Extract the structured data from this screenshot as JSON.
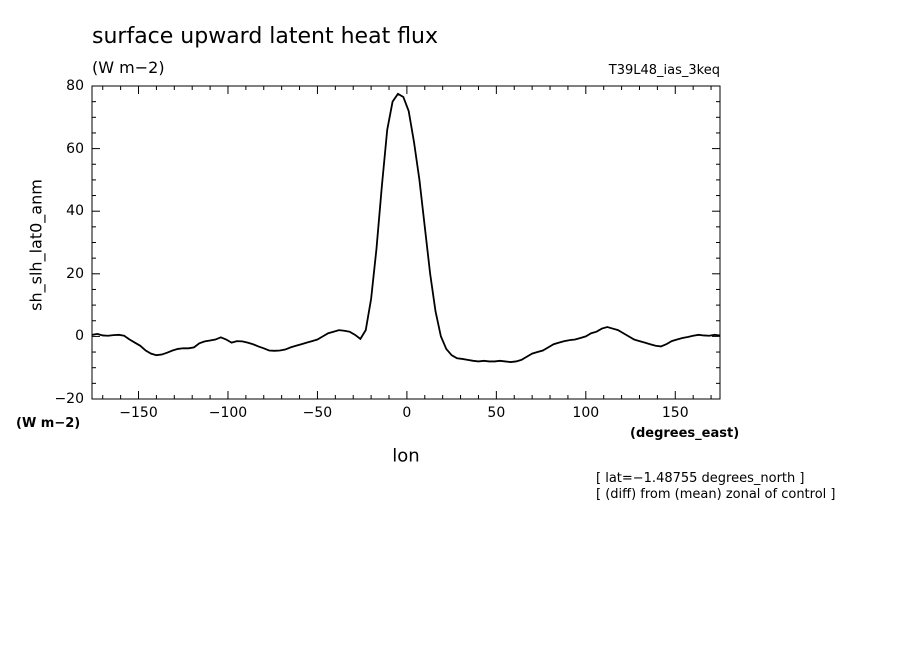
{
  "chart_data": {
    "type": "line",
    "title": "surface upward latent heat flux",
    "subtitle": "(W m−2)",
    "experiment": "T39L48_ias_3keq",
    "ylabel": "sh_slh_lat0_anm",
    "yunits": "(W m−2)",
    "xlabel": "lon",
    "xunits": "(degrees_east)",
    "xlim": [
      -176,
      175
    ],
    "ylim": [
      -20,
      80
    ],
    "xticks": [
      -150,
      -100,
      -50,
      0,
      50,
      100,
      150
    ],
    "xtick_labels": [
      "−150",
      "−100",
      "−50",
      "0",
      "50",
      "100",
      "150"
    ],
    "yticks": [
      -20,
      0,
      20,
      40,
      60,
      80
    ],
    "ytick_labels": [
      "−20",
      "0",
      "20",
      "40",
      "60",
      "80"
    ],
    "grid": false,
    "annotations": [
      "[ lat=−1.48755 degrees_north ]",
      "[ (diff) from (mean) zonal of control ]"
    ],
    "series": [
      {
        "x": [
          -176,
          -173,
          -170,
          -167,
          -164,
          -161,
          -158,
          -155,
          -152,
          -149,
          -146,
          -143,
          -140,
          -137,
          -134,
          -131,
          -128,
          -125,
          -122,
          -119,
          -116,
          -113,
          -110,
          -107,
          -104,
          -101,
          -98,
          -95,
          -92,
          -89,
          -86,
          -83,
          -80,
          -77,
          -74,
          -71,
          -68,
          -65,
          -62,
          -59,
          -56,
          -53,
          -50,
          -47,
          -44,
          -41,
          -38,
          -35,
          -32,
          -29,
          -26,
          -23,
          -20,
          -17,
          -14,
          -11,
          -8,
          -5,
          -2,
          1,
          4,
          7,
          10,
          13,
          16,
          19,
          22,
          25,
          28,
          31,
          34,
          37,
          40,
          43,
          46,
          49,
          52,
          55,
          58,
          61,
          64,
          67,
          70,
          73,
          76,
          79,
          82,
          85,
          88,
          91,
          94,
          97,
          100,
          103,
          106,
          109,
          112,
          115,
          118,
          121,
          124,
          127,
          130,
          133,
          136,
          139,
          142,
          145,
          148,
          151,
          154,
          157,
          160,
          163,
          166,
          169,
          172,
          175
        ],
        "y": [
          0.5,
          0.8,
          0.3,
          0.2,
          0.4,
          0.5,
          0.2,
          -1.0,
          -2.0,
          -3.0,
          -4.5,
          -5.5,
          -6.0,
          -5.8,
          -5.2,
          -4.5,
          -4.0,
          -3.8,
          -3.8,
          -3.5,
          -2.2,
          -1.6,
          -1.3,
          -1.0,
          -0.3,
          -1.0,
          -2.0,
          -1.5,
          -1.6,
          -2.0,
          -2.5,
          -3.2,
          -3.8,
          -4.5,
          -4.6,
          -4.5,
          -4.2,
          -3.5,
          -3.0,
          -2.5,
          -2.0,
          -1.5,
          -1.0,
          0.0,
          1.0,
          1.5,
          2.0,
          1.8,
          1.5,
          0.5,
          -0.8,
          2.0,
          12,
          28,
          48,
          66,
          75,
          77.5,
          76.5,
          72,
          62,
          50,
          35,
          20,
          8,
          0,
          -4,
          -6,
          -7,
          -7.2,
          -7.5,
          -7.8,
          -8.0,
          -7.8,
          -8.0,
          -8.0,
          -7.8,
          -8.0,
          -8.2,
          -8.0,
          -7.5,
          -6.5,
          -5.5,
          -5.0,
          -4.5,
          -3.5,
          -2.5,
          -2.0,
          -1.5,
          -1.2,
          -1.0,
          -0.5,
          0.0,
          1.0,
          1.5,
          2.5,
          3.0,
          2.5,
          2.0,
          1.0,
          0.0,
          -1.0,
          -1.5,
          -2.0,
          -2.5,
          -3.0,
          -3.2,
          -2.5,
          -1.5,
          -1.0,
          -0.5,
          -0.2,
          0.2,
          0.5,
          0.3,
          0.2,
          0.5,
          0.3
        ]
      }
    ]
  }
}
